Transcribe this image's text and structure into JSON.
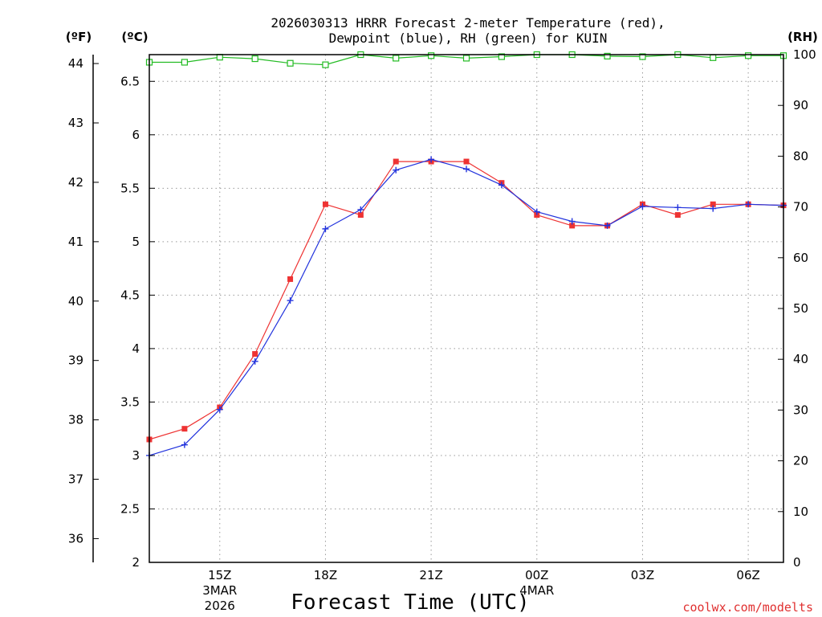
{
  "chart_data": {
    "type": "line",
    "title_lines": [
      "2026030313 HRRR Forecast 2-meter Temperature (red),",
      "Dewpoint (blue), RH (green) for KUIN"
    ],
    "xlabel": "Forecast Time (UTC)",
    "credit": "coolwx.com/modelts",
    "units": {
      "fahrenheit": "(ºF)",
      "celsius": "(ºC)",
      "rh": "(RH)"
    },
    "x_hours": [
      13,
      14,
      15,
      16,
      17,
      18,
      19,
      20,
      21,
      22,
      23,
      24,
      25,
      26,
      27,
      28,
      29,
      30,
      31
    ],
    "x_range": [
      13,
      31
    ],
    "x_ticks": [
      {
        "hour": 15,
        "lines": [
          "15Z",
          "3MAR",
          "2026"
        ]
      },
      {
        "hour": 18,
        "lines": [
          "18Z"
        ]
      },
      {
        "hour": 21,
        "lines": [
          "21Z"
        ]
      },
      {
        "hour": 24,
        "lines": [
          "00Z",
          "4MAR"
        ]
      },
      {
        "hour": 27,
        "lines": [
          "03Z"
        ]
      },
      {
        "hour": 30,
        "lines": [
          "06Z"
        ]
      }
    ],
    "celsius_axis": {
      "range": [
        2,
        6.75
      ],
      "ticks": [
        "2",
        "2.5",
        "3",
        "3.5",
        "4",
        "4.5",
        "5",
        "5.5",
        "6",
        "6.5"
      ]
    },
    "fahrenheit_axis": {
      "ticks": [
        "36",
        "37",
        "38",
        "39",
        "40",
        "41",
        "42",
        "43",
        "44"
      ]
    },
    "rh_axis": {
      "range": [
        0,
        100
      ],
      "ticks": [
        "0",
        "10",
        "20",
        "30",
        "40",
        "50",
        "60",
        "70",
        "80",
        "90",
        "100"
      ]
    },
    "series": [
      {
        "name": "Temperature",
        "unit": "C",
        "color": "#ee3333",
        "marker": "square",
        "values": [
          3.15,
          3.25,
          3.45,
          3.95,
          4.65,
          5.35,
          5.25,
          5.75,
          5.75,
          5.75,
          5.55,
          5.25,
          5.15,
          5.15,
          5.35,
          5.25,
          5.35,
          5.35,
          5.34
        ]
      },
      {
        "name": "Dewpoint",
        "unit": "C",
        "color": "#2233dd",
        "marker": "plus",
        "values": [
          3.0,
          3.1,
          3.43,
          3.88,
          4.45,
          5.12,
          5.3,
          5.67,
          5.77,
          5.68,
          5.53,
          5.28,
          5.19,
          5.15,
          5.33,
          5.32,
          5.31,
          5.35,
          5.34
        ]
      },
      {
        "name": "RH",
        "unit": "%",
        "color": "#22bb22",
        "marker": "open-square",
        "values": [
          98.5,
          98.5,
          99.5,
          99.2,
          98.3,
          98.0,
          100.0,
          99.3,
          99.8,
          99.3,
          99.6,
          100.0,
          100.0,
          99.7,
          99.6,
          100.0,
          99.4,
          99.8,
          99.8
        ]
      }
    ]
  }
}
